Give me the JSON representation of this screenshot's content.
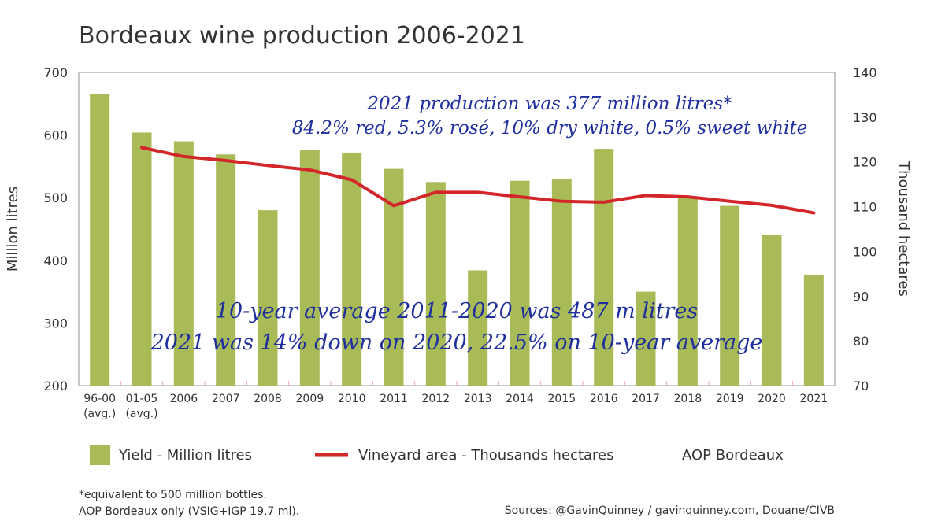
{
  "chart_data": {
    "type": "bar",
    "title": "Bordeaux wine production 2006-2021",
    "categories": [
      "96-00",
      "01-05",
      "2006",
      "2007",
      "2008",
      "2009",
      "2010",
      "2011",
      "2012",
      "2013",
      "2014",
      "2015",
      "2016",
      "2017",
      "2018",
      "2019",
      "2020",
      "2021"
    ],
    "category_sublabels": [
      "(avg.)",
      "(avg.)",
      "",
      "",
      "",
      "",
      "",
      "",
      "",
      "",
      "",
      "",
      "",
      "",
      "",
      "",
      "",
      ""
    ],
    "ylabel": "Million litres",
    "ylim": [
      200,
      700
    ],
    "yticks": [
      200,
      300,
      400,
      500,
      600,
      700
    ],
    "y2label": "Thousand hectares",
    "y2lim": [
      70,
      140
    ],
    "y2ticks": [
      70,
      80,
      90,
      100,
      110,
      120,
      130,
      140
    ],
    "series": [
      {
        "name": "Yield - Million litres",
        "type": "bar",
        "axis": "left",
        "color": "#a8bb57",
        "values": [
          666,
          604,
          590,
          569,
          480,
          576,
          572,
          546,
          525,
          384,
          527,
          530,
          578,
          350,
          500,
          487,
          440,
          377
        ]
      },
      {
        "name": "Vineyard area - Thousands hectares",
        "type": "line",
        "axis": "right",
        "color": "#d3262a",
        "values": [
          null,
          123.2,
          121.2,
          120.3,
          119.2,
          118.2,
          116.0,
          110.2,
          113.2,
          113.2,
          112.2,
          111.2,
          111.0,
          112.5,
          112.2,
          111.2,
          110.3,
          108.6
        ]
      }
    ],
    "legend_position": "bottom",
    "legend_extra": "AOP Bordeaux",
    "annotations": [
      "2021 production was 377 million litres*",
      "84.2% red, 5.3% rosé, 10% dry white, 0.5% sweet white",
      "10-year average 2011-2020 was 487 m litres",
      "2021 was 14% down on 2020, 22.5% on 10-year average"
    ],
    "footnote_lines": [
      "*equivalent to 500 million bottles.",
      "AOP Bordeaux only (VSIG+IGP 19.7 ml)."
    ],
    "sources": "Sources: @GavinQuinney / gavinquinney.com, Douane/CIVB",
    "grid": false,
    "colors": {
      "frame": "#b5b5b5",
      "text": "#333333",
      "annotation": "#1f2f9e",
      "tick_mark": "#e8a7c0"
    }
  }
}
